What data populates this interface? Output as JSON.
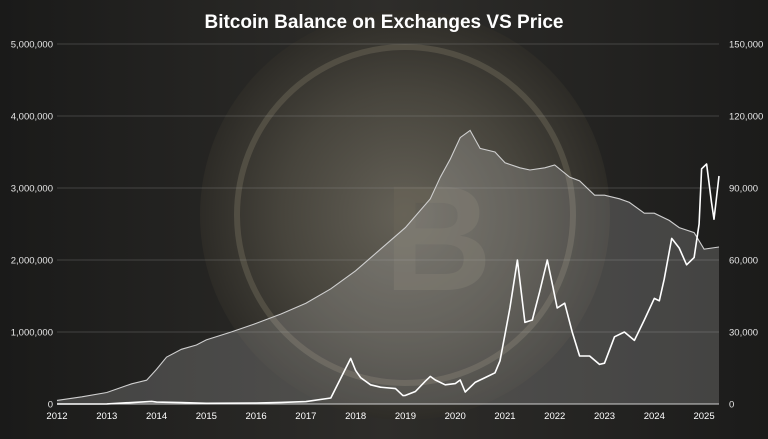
{
  "chart_data": {
    "type": "line",
    "title": "Bitcoin Balance on Exchanges VS Price",
    "xlabel": "",
    "ylabel": "",
    "y2label": "",
    "x_ticks": [
      "2012",
      "2013",
      "2014",
      "2015",
      "2016",
      "2017",
      "2018",
      "2019",
      "2020",
      "2021",
      "2022",
      "2023",
      "2024",
      "2025"
    ],
    "xlim": [
      2012.0,
      2025.3
    ],
    "ylim_left": [
      0,
      5000000
    ],
    "ylim_right": [
      0,
      150000
    ],
    "y_ticks_left": [
      "0",
      "1,000,000",
      "2,000,000",
      "3,000,000",
      "4,000,000",
      "5,000,000"
    ],
    "y_ticks_right": [
      "0",
      "30,000",
      "60,000",
      "90,000",
      "120,000",
      "150,000"
    ],
    "grid": true,
    "colors": {
      "balance": "#cfcfcf",
      "price": "#ffffff",
      "grid": "#9a9a9a",
      "text": "#ffffff"
    },
    "series": [
      {
        "axis": "left",
        "style": "area",
        "x": [
          2012.0,
          2012.5,
          2013.0,
          2013.5,
          2013.8,
          2014.0,
          2014.2,
          2014.5,
          2014.8,
          2015.0,
          2015.5,
          2016.0,
          2016.5,
          2017.0,
          2017.5,
          2018.0,
          2018.5,
          2019.0,
          2019.5,
          2019.7,
          2019.9,
          2020.0,
          2020.1,
          2020.3,
          2020.5,
          2020.8,
          2021.0,
          2021.3,
          2021.5,
          2021.8,
          2022.0,
          2022.3,
          2022.5,
          2022.8,
          2023.0,
          2023.3,
          2023.5,
          2023.8,
          2024.0,
          2024.3,
          2024.5,
          2024.8,
          2025.0,
          2025.3
        ],
        "values": [
          50000,
          100000,
          160000,
          280000,
          330000,
          480000,
          650000,
          760000,
          820000,
          890000,
          1000000,
          1120000,
          1250000,
          1400000,
          1600000,
          1850000,
          2150000,
          2450000,
          2850000,
          3150000,
          3400000,
          3550000,
          3700000,
          3800000,
          3550000,
          3500000,
          3350000,
          3280000,
          3250000,
          3280000,
          3320000,
          3150000,
          3100000,
          2900000,
          2900000,
          2850000,
          2800000,
          2650000,
          2650000,
          2550000,
          2450000,
          2380000,
          2150000,
          2180000
        ]
      },
      {
        "axis": "right",
        "style": "line",
        "x": [
          2012.0,
          2013.0,
          2013.9,
          2014.0,
          2014.5,
          2015.0,
          2016.0,
          2016.5,
          2017.0,
          2017.5,
          2017.9,
          2018.0,
          2018.1,
          2018.3,
          2018.5,
          2018.8,
          2018.95,
          2019.0,
          2019.2,
          2019.4,
          2019.5,
          2019.6,
          2019.8,
          2020.0,
          2020.1,
          2020.2,
          2020.4,
          2020.6,
          2020.8,
          2020.9,
          2021.0,
          2021.1,
          2021.25,
          2021.4,
          2021.55,
          2021.7,
          2021.85,
          2021.95,
          2022.05,
          2022.2,
          2022.35,
          2022.5,
          2022.7,
          2022.9,
          2023.0,
          2023.2,
          2023.4,
          2023.6,
          2023.8,
          2024.0,
          2024.1,
          2024.2,
          2024.35,
          2024.5,
          2024.65,
          2024.8,
          2024.9,
          2024.95,
          2025.05,
          2025.15,
          2025.2,
          2025.3
        ],
        "values": [
          10,
          30,
          1100,
          800,
          600,
          300,
          430,
          650,
          1000,
          2500,
          19000,
          14000,
          11000,
          8000,
          7000,
          6400,
          3500,
          3600,
          5200,
          9500,
          11500,
          10000,
          8000,
          8500,
          10000,
          5000,
          9000,
          11000,
          13000,
          18000,
          29000,
          40000,
          60000,
          34000,
          35000,
          47000,
          60000,
          50000,
          40000,
          42000,
          30000,
          20000,
          20000,
          16500,
          17000,
          28000,
          30000,
          26500,
          35000,
          44000,
          43000,
          52000,
          69000,
          65000,
          58000,
          61000,
          75000,
          98000,
          100000,
          84000,
          77000,
          95000
        ]
      }
    ]
  }
}
